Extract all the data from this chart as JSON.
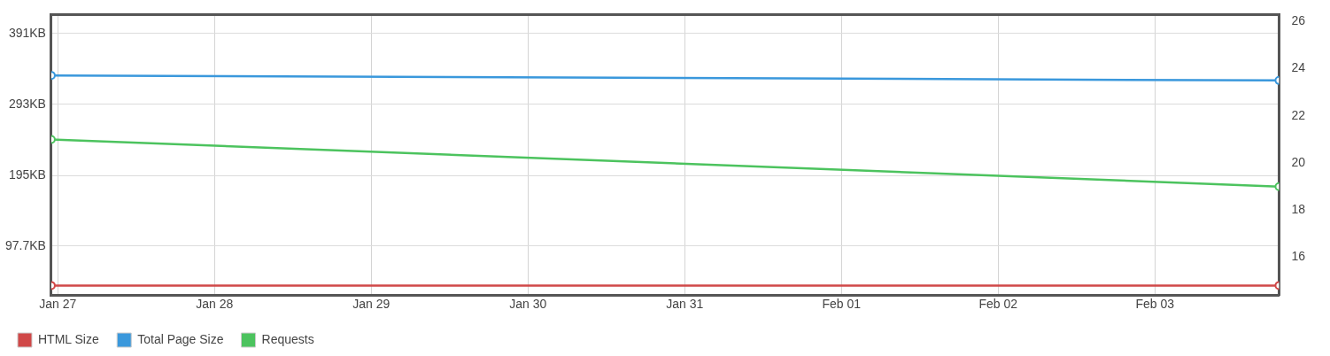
{
  "chart_data": {
    "type": "line",
    "x": [
      "--01-26T23:00",
      "--02-03T19:00"
    ],
    "xlim": [
      "--01-26T23:00",
      "--02-03T19:00"
    ],
    "xticks": [
      {
        "value": "--01-27",
        "label": "Jan 27"
      },
      {
        "value": "--01-28",
        "label": "Jan 28"
      },
      {
        "value": "--01-29",
        "label": "Jan 29"
      },
      {
        "value": "--01-30",
        "label": "Jan 30"
      },
      {
        "value": "--01-31",
        "label": "Jan 31"
      },
      {
        "value": "--02-01",
        "label": "Feb 01"
      },
      {
        "value": "--02-02",
        "label": "Feb 02"
      },
      {
        "value": "--02-03",
        "label": "Feb 03"
      }
    ],
    "ylim": [
      29.8,
      417
    ],
    "yticks": [
      {
        "value": 97.7,
        "label": "97.7KB"
      },
      {
        "value": 195,
        "label": "195KB"
      },
      {
        "value": 293,
        "label": "293KB"
      },
      {
        "value": 391,
        "label": "391KB"
      }
    ],
    "y2lim": [
      14.4,
      26.3
    ],
    "y2ticks": [
      16,
      18,
      20,
      22,
      24,
      26
    ],
    "series": [
      {
        "name": "HTML Size",
        "color": "#d04848",
        "values": [
          43,
          43
        ]
      },
      {
        "name": "Total Page Size",
        "color": "#3a98dc",
        "values": [
          333,
          326
        ]
      },
      {
        "name": "Requests",
        "color": "#4cc35e",
        "values": [
          21,
          19
        ],
        "axis": "y2"
      }
    ],
    "grid": true,
    "legend": "bottom left",
    "marker": "circle",
    "line_style": "solid"
  }
}
